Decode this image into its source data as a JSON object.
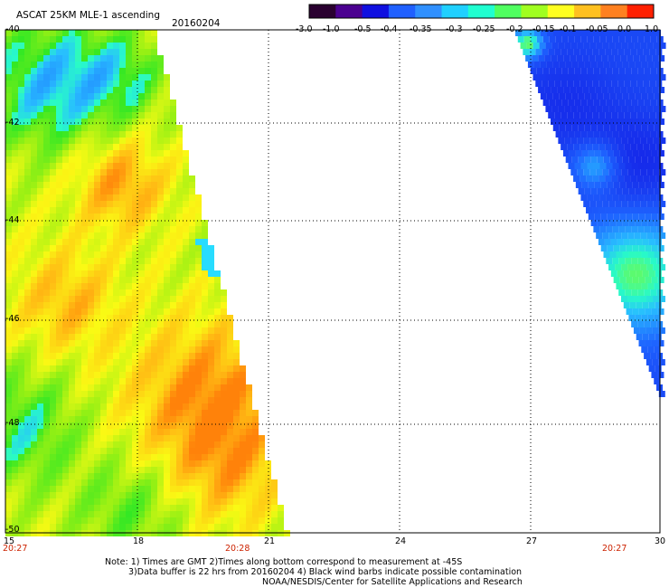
{
  "header": {
    "title": "ASCAT 25KM MLE-1 ascending",
    "date": "20160204"
  },
  "colorbar": {
    "labels": [
      "-3.0",
      "-1.0",
      "-0.5",
      "-0.4",
      "-0.35",
      "-0.3",
      "-0.25",
      "-0.2",
      "-0.15",
      "-0.1",
      "-0.05",
      "0.0",
      "1.0"
    ],
    "colors": [
      "#2a0030",
      "#4b0090",
      "#1010e0",
      "#2060ff",
      "#3090ff",
      "#20d0ff",
      "#20ffd0",
      "#50ff60",
      "#a0ff20",
      "#ffff20",
      "#ffc020",
      "#ff8020",
      "#ff2000"
    ]
  },
  "axes": {
    "lat_labels": [
      "-40",
      "-42",
      "-44",
      "-46",
      "-48",
      "-50"
    ],
    "lon_labels": [
      "15",
      "18",
      "21",
      "24",
      "27",
      "30"
    ],
    "time_labels": [
      "20:27",
      "20:28",
      "20:27"
    ]
  },
  "notes": {
    "line1": "Note: 1) Times are GMT 2)Times along bottom correspond to measurement at -45S",
    "line2": "3)Data buffer is 22 hrs from 20160204 4) Black wind barbs indicate possible contamination",
    "line3": "NOAA/NESDIS/Center for Satellite Applications and Research"
  }
}
